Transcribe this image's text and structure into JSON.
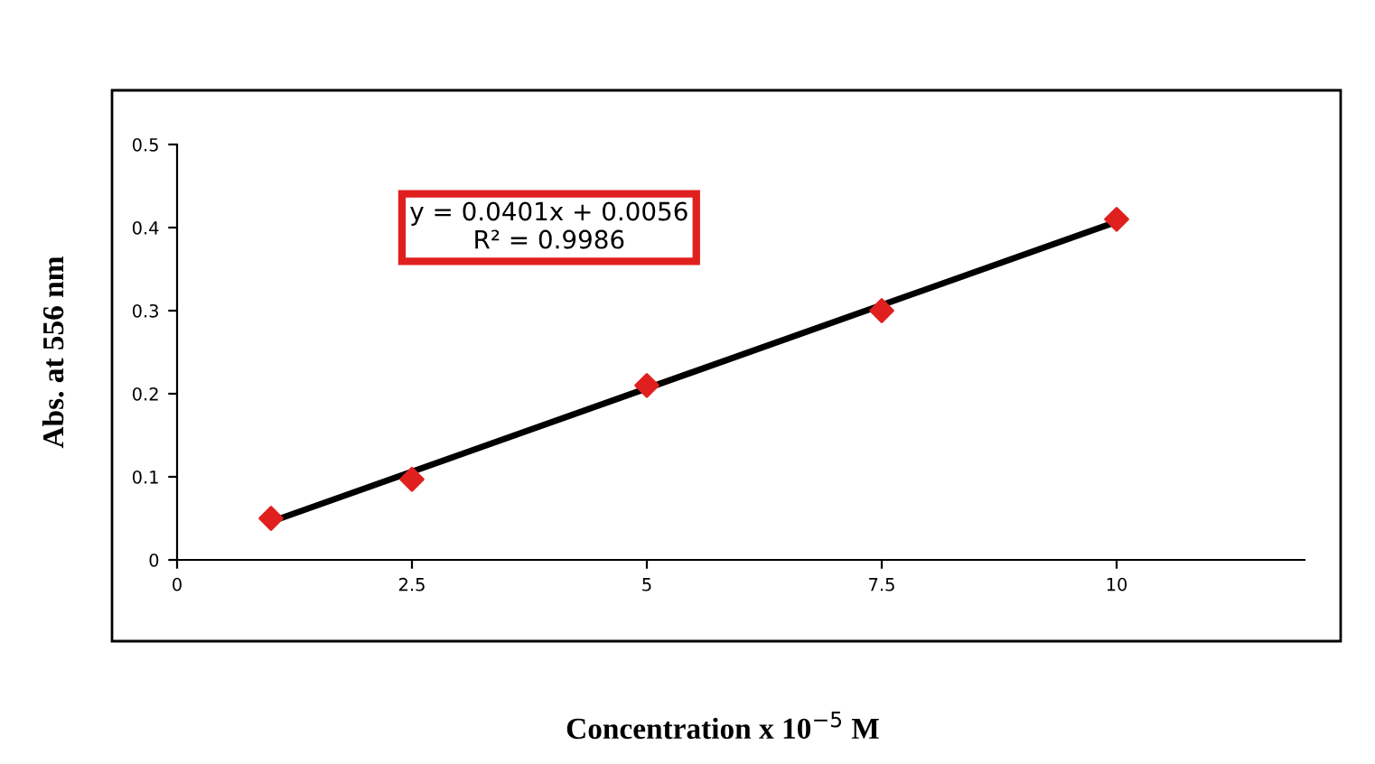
{
  "chart_data": {
    "type": "scatter",
    "xlabel": "Concentration x 10$^{−5}$ M",
    "ylabel": "Abs. at 556 nm",
    "x": [
      1,
      2.5,
      5,
      7.5,
      10
    ],
    "series": [
      {
        "color": "#e0201e",
        "marker": "diamond",
        "values": [
          0.05,
          0.097,
          0.21,
          0.3,
          0.41
        ]
      },
      {
        "type": "line",
        "color": "#000000",
        "marker": "none",
        "x": [
          1,
          10
        ],
        "values": [
          0.046,
          0.407
        ]
      }
    ],
    "xlim": [
      0,
      12
    ],
    "xticks": [
      0,
      2.5,
      5,
      7.5,
      10
    ],
    "ylim": [
      0,
      0.5
    ],
    "yticks": [
      0,
      0.1,
      0.2,
      0.3,
      0.4,
      0.5
    ],
    "grid": false,
    "legend": false,
    "annotations": [
      "y = 0.0401x + 0.0056\nR² = 0.9986"
    ]
  }
}
